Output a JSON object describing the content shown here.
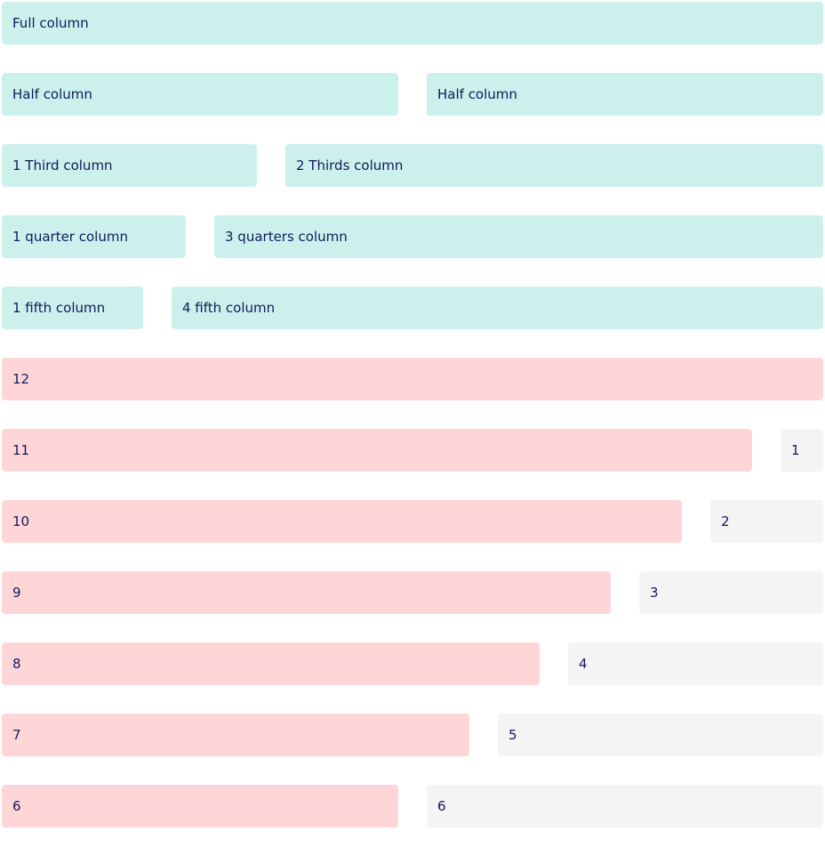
{
  "colors": {
    "teal": "#ccf1ed",
    "pink": "#ffd6d8",
    "gray": "#f4f4f5",
    "text": "#0f1a5a"
  },
  "fraction_rows": [
    {
      "cells": [
        "Full column"
      ]
    },
    {
      "cells": [
        "Half column",
        "Half column"
      ]
    },
    {
      "cells": [
        "1 Third column",
        "2 Thirds column"
      ]
    },
    {
      "cells": [
        "1 quarter column",
        "3 quarters column"
      ]
    },
    {
      "cells": [
        "1 fifth column",
        "4 fifth column"
      ]
    }
  ],
  "span_rows": [
    {
      "cells": [
        "12"
      ]
    },
    {
      "cells": [
        "11",
        "1"
      ]
    },
    {
      "cells": [
        "10",
        "2"
      ]
    },
    {
      "cells": [
        "9",
        "3"
      ]
    },
    {
      "cells": [
        "8",
        "4"
      ]
    },
    {
      "cells": [
        "7",
        "5"
      ]
    },
    {
      "cells": [
        "6",
        "6"
      ]
    }
  ]
}
